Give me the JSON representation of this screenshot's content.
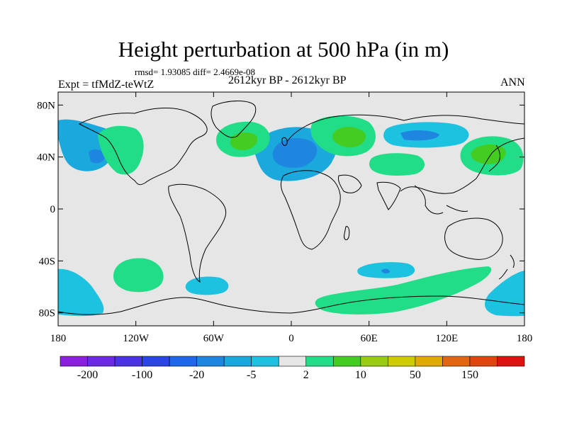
{
  "title": "Height perturbation at 500 hPa (in m)",
  "stats": "rmsd= 1.93085 diff= 2.4669e-08",
  "experiment": "Expt = tfMdZ-teWtZ",
  "period": "2612kyr BP - 2612kyr BP",
  "season": "ANN",
  "map": {
    "projection": "cylindrical equidistant",
    "lon_range": [
      -180,
      180
    ],
    "lat_range": [
      -90,
      90
    ],
    "lat_ticks": [
      {
        "value": 80,
        "label": "80N"
      },
      {
        "value": 40,
        "label": "40N"
      },
      {
        "value": 0,
        "label": "0"
      },
      {
        "value": -40,
        "label": "40S"
      },
      {
        "value": -80,
        "label": "80S"
      }
    ],
    "lon_ticks": [
      {
        "value": -180,
        "label": "180"
      },
      {
        "value": -120,
        "label": "120W"
      },
      {
        "value": -60,
        "label": "60W"
      },
      {
        "value": 0,
        "label": "0"
      },
      {
        "value": 60,
        "label": "60E"
      },
      {
        "value": 120,
        "label": "120E"
      },
      {
        "value": 180,
        "label": "180"
      }
    ],
    "ocean_color": "#e6e6e6",
    "coast_color": "#000000"
  },
  "colorbar": {
    "colors": [
      "#8a1fe0",
      "#6a2ae6",
      "#4a33e6",
      "#2a44e6",
      "#1f66e8",
      "#1f86e0",
      "#1aa8dd",
      "#1cc2e0",
      "#e6e6e6",
      "#22dd88",
      "#44cc22",
      "#99cc11",
      "#cccc00",
      "#e0aa00",
      "#e06611",
      "#e04411",
      "#e01111"
    ],
    "labels": [
      {
        "boundary": 1,
        "text": "-200"
      },
      {
        "boundary": 3,
        "text": "-100"
      },
      {
        "boundary": 5,
        "text": "-20"
      },
      {
        "boundary": 7,
        "text": "-5"
      },
      {
        "boundary": 9,
        "text": "2"
      },
      {
        "boundary": 11,
        "text": "10"
      },
      {
        "boundary": 13,
        "text": "50"
      },
      {
        "boundary": 15,
        "text": "150"
      }
    ]
  },
  "anomaly_regions": [
    {
      "name": "north-atlantic-europe-low",
      "sign": "negative",
      "lon": 5,
      "lat": 38,
      "core": "#1f86e0",
      "fill": "#1aa8dd"
    },
    {
      "name": "north-pacific-low",
      "sign": "negative",
      "lon": -155,
      "lat": 45,
      "core": "#1f86e0",
      "fill": "#1aa8dd"
    },
    {
      "name": "northwest-america-high",
      "sign": "positive",
      "lon": -118,
      "lat": 52,
      "core": "#22dd88",
      "fill": "#22dd88"
    },
    {
      "name": "north-atlantic-high",
      "sign": "positive",
      "lon": -38,
      "lat": 57,
      "core": "#44cc22",
      "fill": "#22dd88"
    },
    {
      "name": "russia-high",
      "sign": "positive",
      "lon": 55,
      "lat": 60,
      "core": "#44cc22",
      "fill": "#22dd88"
    },
    {
      "name": "siberia-low",
      "sign": "negative",
      "lon": 100,
      "lat": 58,
      "core": "#1f86e0",
      "fill": "#1cc2e0"
    },
    {
      "name": "central-asia-high",
      "sign": "positive",
      "lon": 90,
      "lat": 36,
      "core": "#22dd88",
      "fill": "#22dd88"
    },
    {
      "name": "east-asia-high",
      "sign": "positive",
      "lon": 150,
      "lat": 40,
      "core": "#44cc22",
      "fill": "#22dd88"
    },
    {
      "name": "south-pacific-high",
      "sign": "positive",
      "lon": -130,
      "lat": -52,
      "core": "#22dd88",
      "fill": "#22dd88"
    },
    {
      "name": "drake-passage-low",
      "sign": "negative",
      "lon": -65,
      "lat": -62,
      "core": "#1f86e0",
      "fill": "#1cc2e0"
    },
    {
      "name": "south-indian-low",
      "sign": "negative",
      "lon": 75,
      "lat": -46,
      "core": "#1f86e0",
      "fill": "#1cc2e0"
    },
    {
      "name": "antarctic-ring-high",
      "sign": "positive",
      "lon": 90,
      "lat": -68,
      "core": "#22dd88",
      "fill": "#22dd88"
    },
    {
      "name": "southwest-pacific-low",
      "sign": "negative",
      "lon": -175,
      "lat": -65,
      "core": "#1f86e0",
      "fill": "#1cc2e0"
    },
    {
      "name": "ross-sea-low",
      "sign": "negative",
      "lon": 170,
      "lat": -65,
      "core": "#1f86e0",
      "fill": "#1cc2e0"
    }
  ]
}
